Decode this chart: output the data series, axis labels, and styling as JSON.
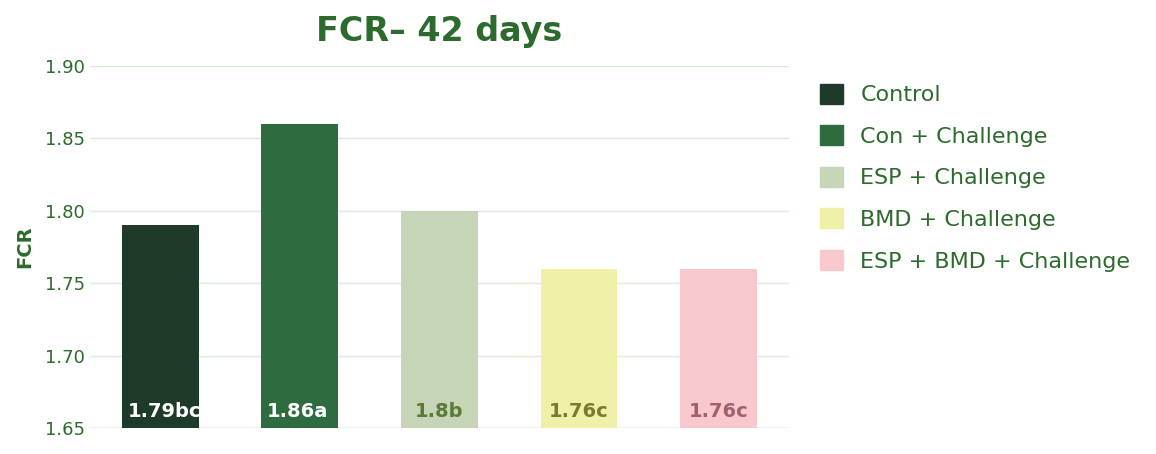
{
  "title": "FCR– 42 days",
  "ylabel": "FCR",
  "categories": [
    "Control",
    "Con + Challenge",
    "ESP + Challenge",
    "BMD + Challenge",
    "ESP + BMD + Challenge"
  ],
  "values": [
    1.79,
    1.86,
    1.8,
    1.76,
    1.76
  ],
  "labels": [
    "1.79bc",
    "1.86a",
    "1.8b",
    "1.76c",
    "1.76c"
  ],
  "bar_colors": [
    "#1e3a28",
    "#2e6b3e",
    "#c5d5b5",
    "#f0f0a8",
    "#f8c8cc"
  ],
  "label_colors": [
    "white",
    "white",
    "#5a7a3a",
    "#7a7a30",
    "#a06070"
  ],
  "ylim": [
    1.65,
    1.9
  ],
  "yticks": [
    1.65,
    1.7,
    1.75,
    1.8,
    1.85,
    1.9
  ],
  "title_color": "#2d6a2d",
  "ylabel_color": "#2d6a2d",
  "legend_colors": [
    "#1e3a28",
    "#2e6b3e",
    "#c5d5b5",
    "#f0f0a8",
    "#f8c8cc"
  ],
  "legend_labels": [
    "Control",
    "Con + Challenge",
    "ESP + Challenge",
    "BMD + Challenge",
    "ESP + BMD + Challenge"
  ],
  "background_color": "#ffffff",
  "grid_color": "#d8ecd8",
  "title_fontsize": 24,
  "axis_fontsize": 13,
  "label_fontsize": 14,
  "legend_fontsize": 16
}
